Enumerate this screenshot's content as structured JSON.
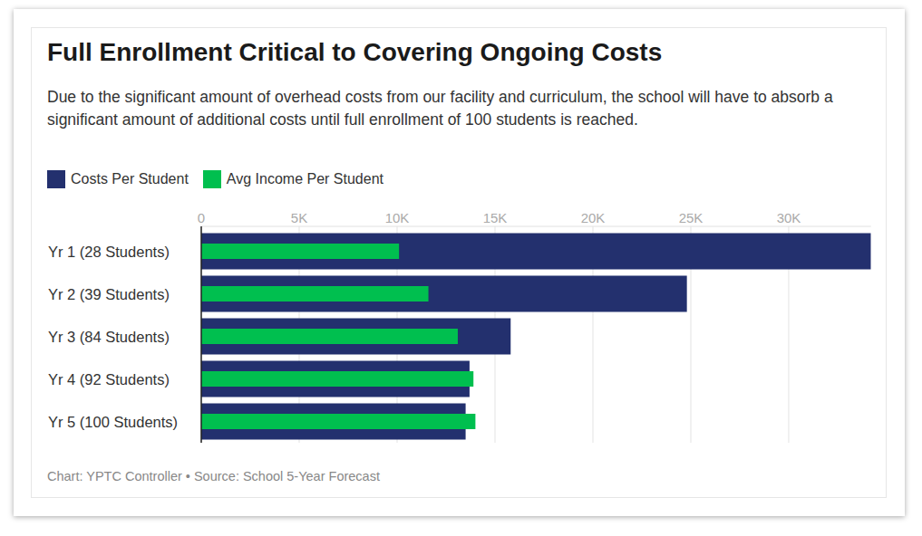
{
  "chart_data": {
    "type": "bar",
    "orientation": "horizontal",
    "title": "Full Enrollment Critical to Covering Ongoing Costs",
    "subtitle": "Due to the significant amount of overhead costs from our facility and curriculum, the school will have to absorb a significant amount of additional costs until full enrollment of 100 students is reached.",
    "categories": [
      "Yr 1 (28 Students)",
      "Yr 2 (39 Students)",
      "Yr 3 (84 Students)",
      "Yr 4 (92 Students)",
      "Yr 5 (100 Students)"
    ],
    "series": [
      {
        "name": "Costs Per Student",
        "color": "#23306e",
        "values": [
          34200,
          24800,
          15800,
          13700,
          13500
        ]
      },
      {
        "name": "Avg Income Per Student",
        "color": "#00bf4f",
        "values": [
          10100,
          11600,
          13100,
          13900,
          14000
        ]
      }
    ],
    "xlim": [
      0,
      34200
    ],
    "xticks": [
      0,
      {
        "value": 5000,
        "label": "5K"
      },
      {
        "value": 10000,
        "label": "10K"
      },
      {
        "value": 15000,
        "label": "15K"
      },
      {
        "value": 20000,
        "label": "20K"
      },
      {
        "value": 25000,
        "label": "25K"
      },
      {
        "value": 30000,
        "label": "30K"
      }
    ],
    "grid": true,
    "legend": "top-left",
    "source": "Chart: YPTC Controller • Source: School 5-Year Forecast"
  }
}
